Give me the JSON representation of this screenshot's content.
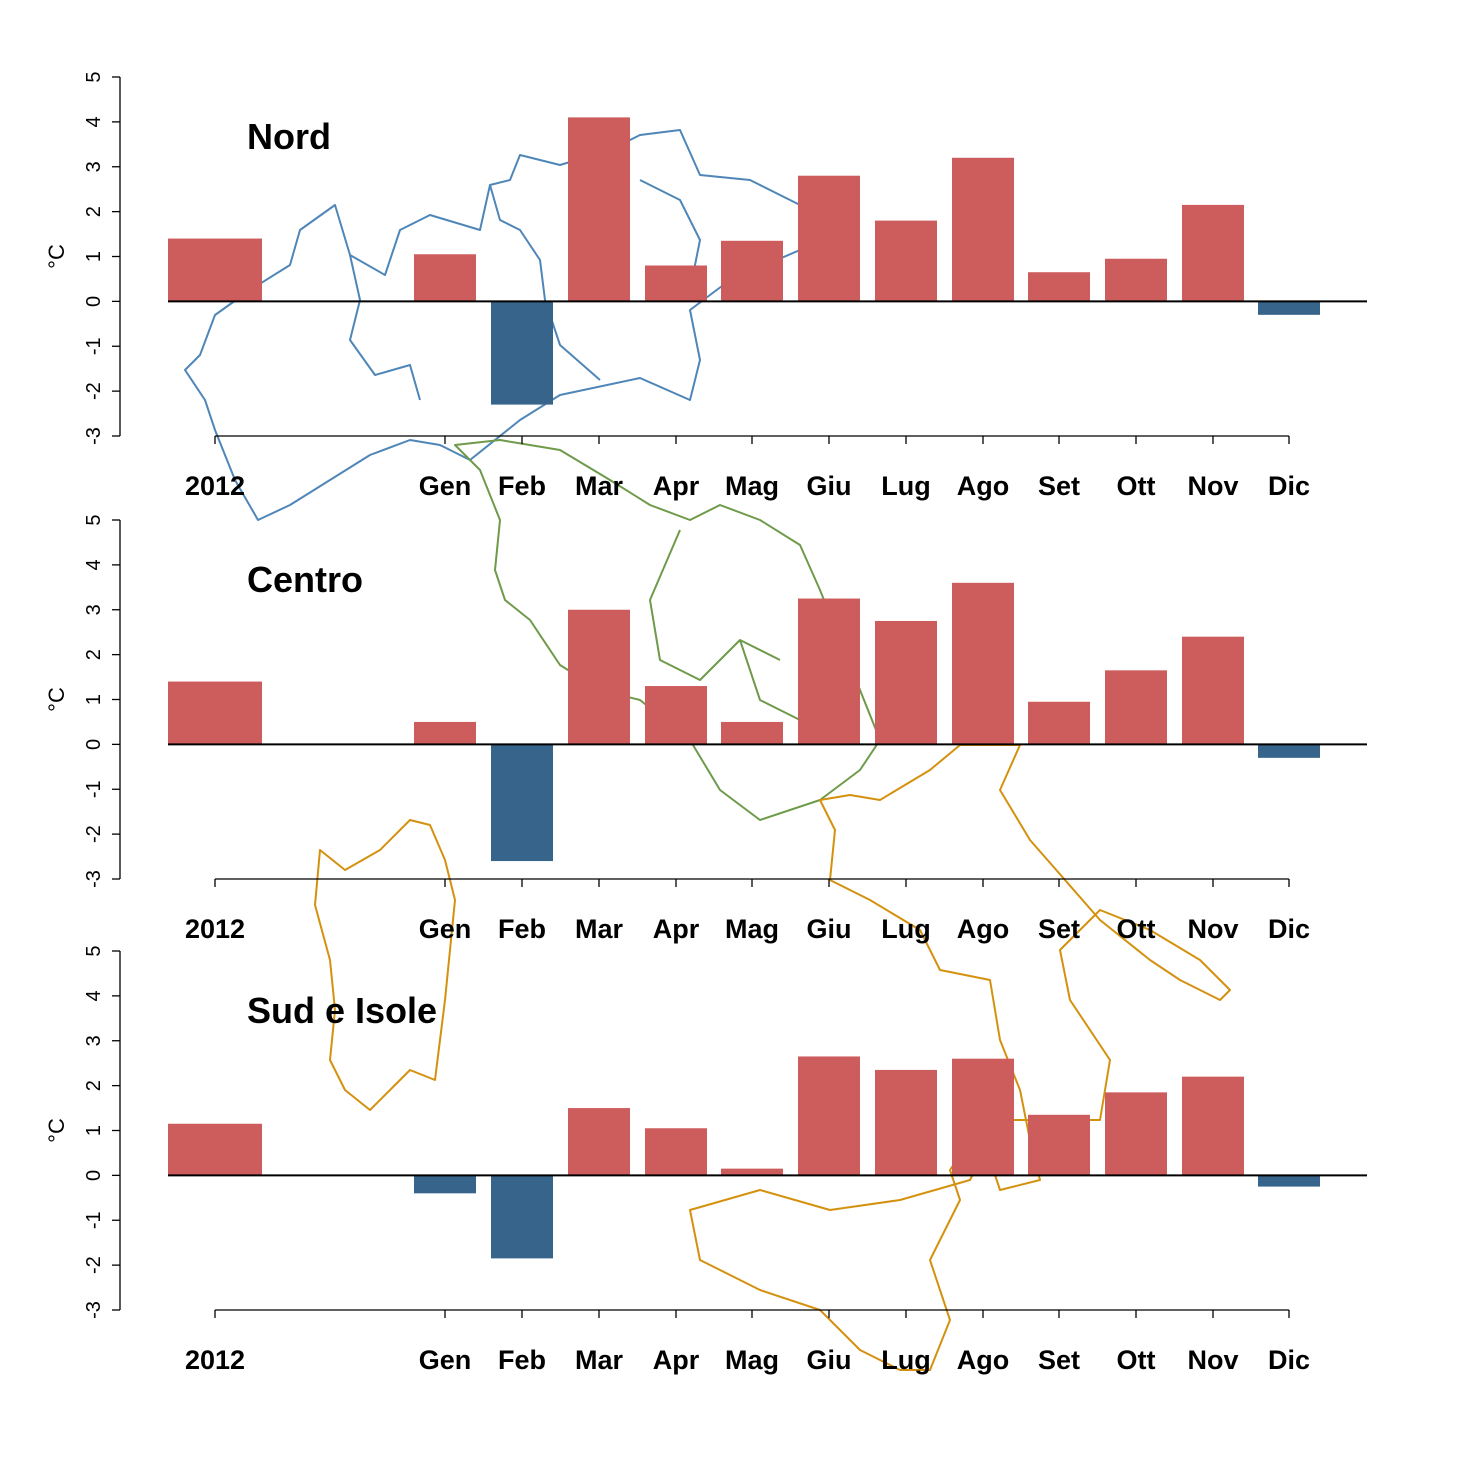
{
  "chart_data": [
    {
      "type": "bar",
      "title": "Nord",
      "ylabel": "°C",
      "ylim": [
        -3,
        5
      ],
      "yticks": [
        -3,
        -2,
        -1,
        0,
        1,
        2,
        3,
        4,
        5
      ],
      "categories": [
        "2012",
        "Gen",
        "Feb",
        "Mar",
        "Apr",
        "Mag",
        "Giu",
        "Lug",
        "Ago",
        "Set",
        "Ott",
        "Nov",
        "Dic"
      ],
      "values": [
        1.4,
        1.05,
        -2.3,
        4.1,
        0.8,
        1.35,
        2.8,
        1.8,
        3.2,
        0.65,
        0.95,
        2.15,
        -0.3
      ]
    },
    {
      "type": "bar",
      "title": "Centro",
      "ylabel": "°C",
      "ylim": [
        -3,
        5
      ],
      "yticks": [
        -3,
        -2,
        -1,
        0,
        1,
        2,
        3,
        4,
        5
      ],
      "categories": [
        "2012",
        "Gen",
        "Feb",
        "Mar",
        "Apr",
        "Mag",
        "Giu",
        "Lug",
        "Ago",
        "Set",
        "Ott",
        "Nov",
        "Dic"
      ],
      "values": [
        1.4,
        0.5,
        -2.6,
        3.0,
        1.3,
        0.5,
        3.25,
        2.75,
        3.6,
        0.95,
        1.65,
        2.4,
        -0.3
      ]
    },
    {
      "type": "bar",
      "title": "Sud e Isole",
      "ylabel": "°C",
      "ylim": [
        -3,
        5
      ],
      "yticks": [
        -3,
        -2,
        -1,
        0,
        1,
        2,
        3,
        4,
        5
      ],
      "categories": [
        "2012",
        "Gen",
        "Feb",
        "Mar",
        "Apr",
        "Mag",
        "Giu",
        "Lug",
        "Ago",
        "Set",
        "Ott",
        "Nov",
        "Dic"
      ],
      "values": [
        1.15,
        -0.4,
        -1.85,
        1.5,
        1.05,
        0.15,
        2.65,
        2.35,
        2.6,
        1.35,
        1.85,
        2.2,
        -0.25
      ]
    }
  ],
  "colors": {
    "positive": "#cd5c5c",
    "negative": "#36648b",
    "map_nord": "#4f86b8",
    "map_centro": "#6e9a4a",
    "map_sud": "#d4910f"
  }
}
